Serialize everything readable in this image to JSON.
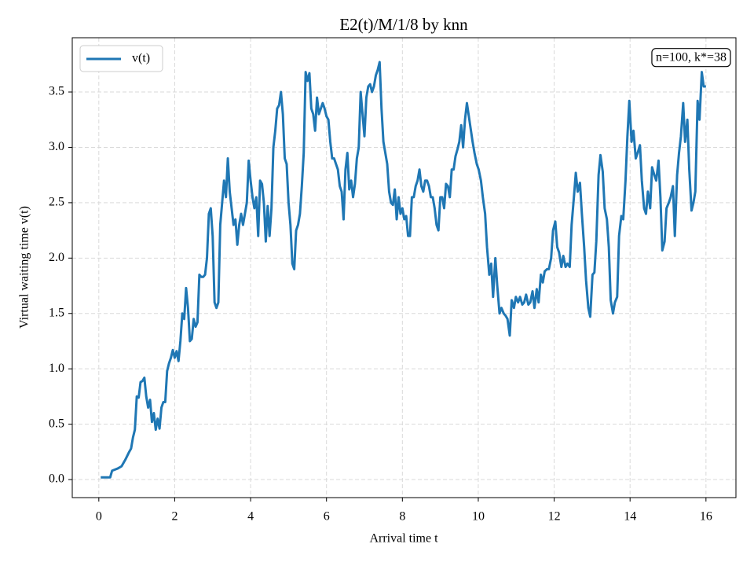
{
  "chart_data": {
    "type": "line",
    "title": "E2(t)/M/1/8 by knn",
    "xlabel": "Arrival time t",
    "ylabel": "Virtual waiting time v(t)",
    "annotation": "n=100, k*=38",
    "legend": "upper left",
    "grid": true,
    "xlim": [
      -0.7,
      16.79
    ],
    "ylim": [
      -0.163,
      3.99
    ],
    "xticks": [
      0,
      2,
      4,
      6,
      8,
      10,
      12,
      14,
      16
    ],
    "yticks": [
      {
        "value": 0,
        "label": "0.0"
      },
      0.5,
      {
        "value": 1,
        "label": "1.0"
      },
      1.5,
      {
        "value": 2,
        "label": "2.0"
      },
      2.5,
      {
        "value": 3,
        "label": "3.0"
      },
      3.5
    ],
    "x": [
      0.05,
      0.3,
      0.35,
      0.5,
      0.6,
      0.7,
      0.8,
      0.85,
      0.9,
      0.95,
      1.0,
      1.05,
      1.1,
      1.15,
      1.2,
      1.25,
      1.3,
      1.35,
      1.4,
      1.45,
      1.5,
      1.55,
      1.6,
      1.65,
      1.7,
      1.75,
      1.8,
      1.85,
      1.9,
      1.95,
      2.0,
      2.05,
      2.1,
      2.15,
      2.2,
      2.25,
      2.3,
      2.35,
      2.4,
      2.45,
      2.5,
      2.55,
      2.6,
      2.65,
      2.7,
      2.75,
      2.8,
      2.85,
      2.9,
      2.95,
      3.0,
      3.05,
      3.1,
      3.15,
      3.2,
      3.25,
      3.3,
      3.35,
      3.4,
      3.45,
      3.5,
      3.55,
      3.6,
      3.65,
      3.7,
      3.75,
      3.8,
      3.85,
      3.9,
      3.95,
      4.0,
      4.05,
      4.1,
      4.15,
      4.2,
      4.25,
      4.3,
      4.35,
      4.4,
      4.45,
      4.5,
      4.55,
      4.6,
      4.65,
      4.7,
      4.75,
      4.8,
      4.85,
      4.9,
      4.95,
      5.0,
      5.05,
      5.1,
      5.15,
      5.2,
      5.25,
      5.3,
      5.35,
      5.4,
      5.45,
      5.5,
      5.55,
      5.6,
      5.65,
      5.7,
      5.75,
      5.8,
      5.85,
      5.9,
      5.95,
      6.0,
      6.05,
      6.1,
      6.15,
      6.2,
      6.25,
      6.3,
      6.35,
      6.4,
      6.45,
      6.5,
      6.55,
      6.6,
      6.65,
      6.7,
      6.75,
      6.8,
      6.85,
      6.9,
      6.95,
      7.0,
      7.05,
      7.1,
      7.15,
      7.2,
      7.25,
      7.3,
      7.35,
      7.4,
      7.45,
      7.5,
      7.55,
      7.6,
      7.65,
      7.7,
      7.75,
      7.8,
      7.85,
      7.9,
      7.95,
      8.0,
      8.05,
      8.1,
      8.15,
      8.2,
      8.25,
      8.3,
      8.35,
      8.4,
      8.45,
      8.5,
      8.55,
      8.6,
      8.65,
      8.7,
      8.75,
      8.8,
      8.85,
      8.9,
      8.95,
      9.0,
      9.05,
      9.1,
      9.15,
      9.2,
      9.25,
      9.3,
      9.35,
      9.4,
      9.45,
      9.5,
      9.55,
      9.6,
      9.65,
      9.7,
      9.85,
      9.9,
      9.96,
      10.01,
      10.07,
      10.12,
      10.18,
      10.23,
      10.29,
      10.34,
      10.39,
      10.45,
      10.5,
      10.56,
      10.61,
      10.67,
      10.72,
      10.77,
      10.83,
      10.88,
      10.94,
      10.99,
      11.05,
      11.1,
      11.16,
      11.21,
      11.26,
      11.32,
      11.37,
      11.43,
      11.48,
      11.54,
      11.59,
      11.65,
      11.7,
      11.75,
      11.81,
      11.86,
      11.92,
      11.97,
      12.03,
      12.08,
      12.13,
      12.19,
      12.24,
      12.3,
      12.35,
      12.41,
      12.46,
      12.52,
      12.57,
      12.62,
      12.68,
      12.73,
      12.79,
      12.84,
      12.9,
      12.95,
      13.01,
      13.06,
      13.11,
      13.17,
      13.22,
      13.28,
      13.33,
      13.39,
      13.44,
      13.49,
      13.55,
      13.6,
      13.66,
      13.71,
      13.77,
      13.82,
      13.88,
      13.93,
      13.98,
      14.04,
      14.09,
      14.15,
      14.2,
      14.26,
      14.31,
      14.37,
      14.42,
      14.47,
      14.53,
      14.58,
      14.64,
      14.69,
      14.75,
      14.8,
      14.85,
      14.91,
      14.96,
      15.02,
      15.07,
      15.13,
      15.18,
      15.24,
      15.29,
      15.34,
      15.4,
      15.45,
      15.51,
      15.56,
      15.62,
      15.67,
      15.72,
      15.78,
      15.83,
      15.89,
      15.94,
      16.0
    ],
    "series": [
      {
        "name": "v(t)",
        "color": "#1f77b4",
        "values": [
          0.02,
          0.02,
          0.08,
          0.1,
          0.12,
          0.18,
          0.25,
          0.28,
          0.38,
          0.45,
          0.75,
          0.74,
          0.88,
          0.89,
          0.92,
          0.75,
          0.65,
          0.72,
          0.52,
          0.6,
          0.45,
          0.55,
          0.46,
          0.65,
          0.7,
          0.7,
          0.98,
          1.05,
          1.1,
          1.17,
          1.1,
          1.16,
          1.07,
          1.25,
          1.5,
          1.45,
          1.73,
          1.55,
          1.25,
          1.27,
          1.45,
          1.38,
          1.42,
          1.85,
          1.83,
          1.83,
          1.85,
          2.0,
          2.4,
          2.45,
          2.2,
          1.6,
          1.55,
          1.6,
          2.3,
          2.5,
          2.7,
          2.55,
          2.9,
          2.6,
          2.45,
          2.3,
          2.35,
          2.12,
          2.3,
          2.4,
          2.3,
          2.4,
          2.5,
          2.88,
          2.7,
          2.55,
          2.45,
          2.55,
          2.2,
          2.7,
          2.67,
          2.5,
          2.15,
          2.47,
          2.2,
          2.45,
          3.0,
          3.15,
          3.35,
          3.38,
          3.5,
          3.3,
          2.9,
          2.85,
          2.5,
          2.3,
          1.95,
          1.9,
          2.25,
          2.3,
          2.4,
          2.65,
          2.95,
          3.68,
          3.6,
          3.67,
          3.35,
          3.3,
          3.15,
          3.45,
          3.3,
          3.35,
          3.4,
          3.35,
          3.28,
          3.25,
          3.05,
          2.9,
          2.9,
          2.85,
          2.8,
          2.65,
          2.6,
          2.35,
          2.8,
          2.95,
          2.62,
          2.7,
          2.55,
          2.67,
          2.9,
          3.0,
          3.5,
          3.3,
          3.1,
          3.45,
          3.55,
          3.57,
          3.5,
          3.55,
          3.65,
          3.7,
          3.77,
          3.35,
          3.05,
          2.95,
          2.85,
          2.6,
          2.5,
          2.48,
          2.62,
          2.35,
          2.55,
          2.4,
          2.45,
          2.35,
          2.38,
          2.2,
          2.2,
          2.55,
          2.55,
          2.65,
          2.7,
          2.8,
          2.65,
          2.6,
          2.7,
          2.7,
          2.65,
          2.55,
          2.55,
          2.45,
          2.3,
          2.25,
          2.55,
          2.55,
          2.45,
          2.67,
          2.65,
          2.55,
          2.8,
          2.8,
          2.92,
          2.98,
          3.05,
          3.2,
          3.0,
          3.25,
          3.4,
          3.05,
          2.95,
          2.85,
          2.8,
          2.7,
          2.55,
          2.4,
          2.1,
          1.85,
          1.95,
          1.65,
          2.0,
          1.75,
          1.5,
          1.55,
          1.5,
          1.48,
          1.45,
          1.3,
          1.62,
          1.55,
          1.65,
          1.6,
          1.65,
          1.58,
          1.6,
          1.67,
          1.58,
          1.6,
          1.7,
          1.55,
          1.72,
          1.6,
          1.85,
          1.78,
          1.88,
          1.9,
          1.9,
          2.0,
          2.25,
          2.33,
          2.1,
          2.05,
          1.92,
          2.02,
          1.92,
          1.95,
          1.92,
          2.3,
          2.55,
          2.77,
          2.6,
          2.68,
          2.4,
          2.1,
          1.8,
          1.55,
          1.47,
          1.85,
          1.87,
          2.15,
          2.75,
          2.93,
          2.78,
          2.45,
          2.35,
          2.1,
          1.62,
          1.5,
          1.6,
          1.65,
          2.2,
          2.38,
          2.35,
          2.7,
          3.1,
          3.42,
          3.05,
          3.15,
          2.9,
          2.95,
          3.02,
          2.7,
          2.45,
          2.4,
          2.6,
          2.45,
          2.82,
          2.75,
          2.7,
          2.88,
          2.55,
          2.07,
          2.15,
          2.45,
          2.5,
          2.55,
          2.65,
          2.2,
          2.75,
          2.95,
          3.1,
          3.4,
          3.05,
          3.25,
          2.8,
          2.43,
          2.5,
          2.6,
          3.42,
          3.25,
          3.68,
          3.55,
          3.55
        ]
      }
    ]
  }
}
